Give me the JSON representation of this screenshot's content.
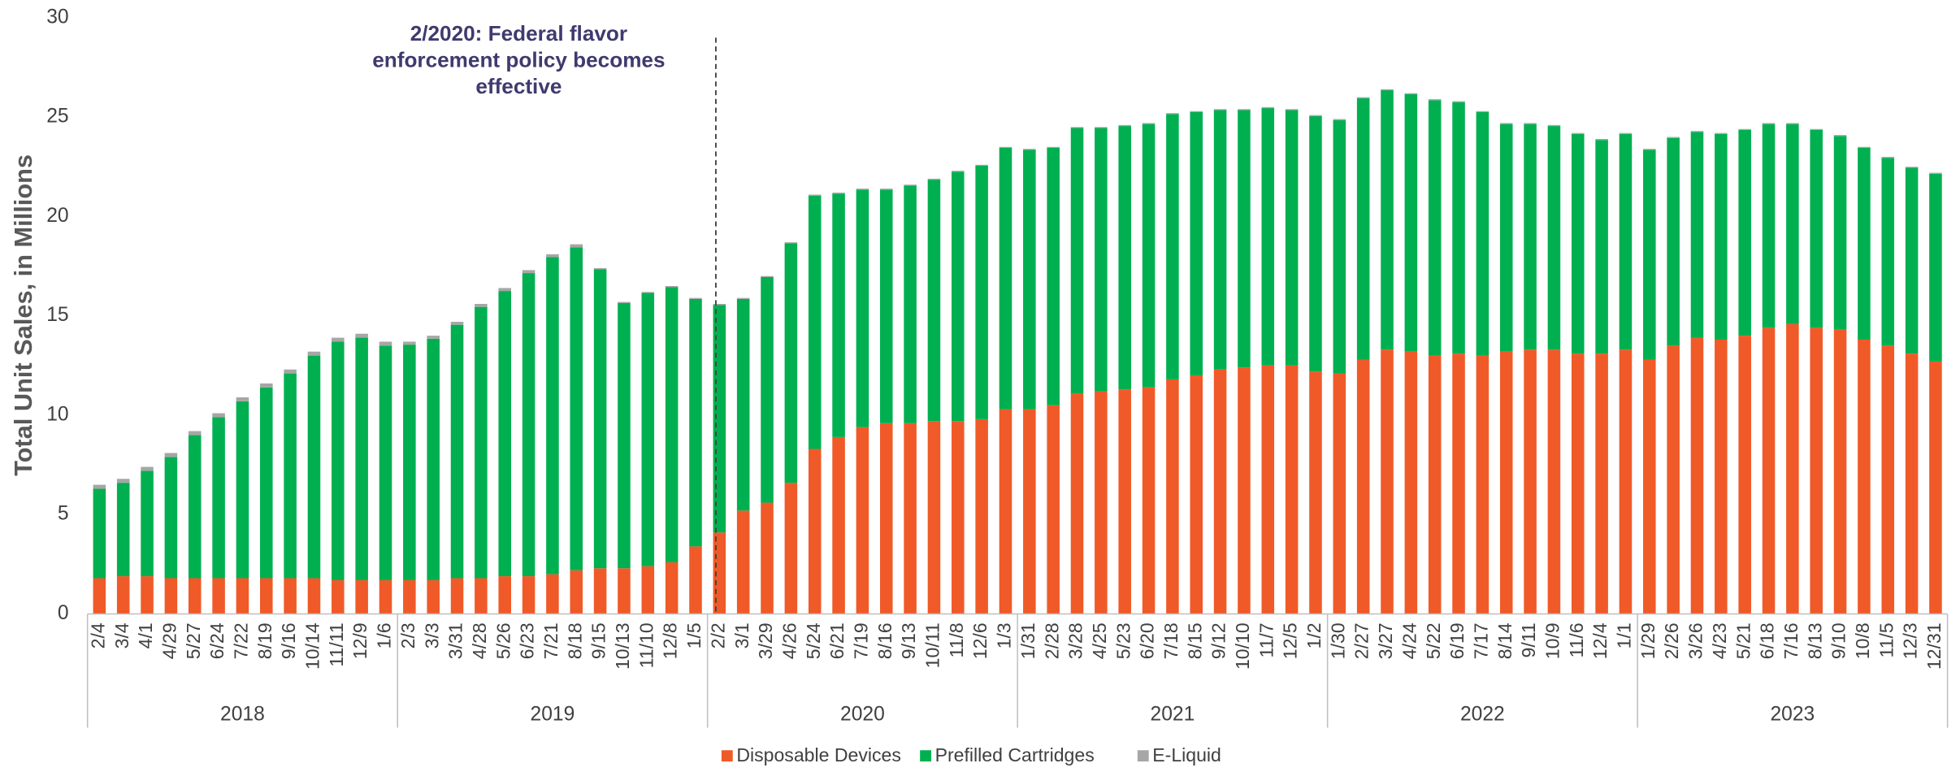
{
  "chart_data": {
    "type": "stacked_bar",
    "y_label": "Total Unit Sales, in Millions",
    "annotation": [
      "2/2020: Federal flavor",
      "enforcement policy becomes",
      "effective"
    ],
    "groups": [
      "2018",
      "2019",
      "2020",
      "2021",
      "2022",
      "2023"
    ],
    "categories": [
      "2/4",
      "3/4",
      "4/1",
      "4/29",
      "5/27",
      "6/24",
      "7/22",
      "8/19",
      "9/16",
      "10/14",
      "11/11",
      "12/9",
      "1/6",
      "2/3",
      "3/3",
      "3/31",
      "4/28",
      "5/26",
      "6/23",
      "7/21",
      "8/18",
      "9/15",
      "10/13",
      "11/10",
      "12/8",
      "1/5",
      "2/2",
      "3/1",
      "3/29",
      "4/26",
      "5/24",
      "6/21",
      "7/19",
      "8/16",
      "9/13",
      "10/11",
      "11/8",
      "12/6",
      "1/3",
      "1/31",
      "2/28",
      "3/28",
      "4/25",
      "5/23",
      "6/20",
      "7/18",
      "8/15",
      "9/12",
      "10/10",
      "11/7",
      "12/5",
      "1/2",
      "1/30",
      "2/27",
      "3/27",
      "4/24",
      "5/22",
      "6/19",
      "7/17",
      "8/14",
      "9/11",
      "10/9",
      "11/6",
      "12/4",
      "1/1",
      "1/29",
      "2/26",
      "3/26",
      "4/23",
      "5/21",
      "6/18",
      "7/16",
      "8/13",
      "9/10",
      "10/8",
      "11/5",
      "12/3",
      "12/31"
    ],
    "series": [
      {
        "name": "Disposable Devices",
        "color": "#f05a28",
        "values": [
          1.8,
          1.9,
          1.9,
          1.8,
          1.8,
          1.8,
          1.8,
          1.8,
          1.8,
          1.8,
          1.7,
          1.7,
          1.7,
          1.7,
          1.7,
          1.8,
          1.8,
          1.9,
          1.9,
          2.0,
          2.2,
          2.3,
          2.3,
          2.4,
          2.6,
          3.4,
          4.1,
          5.2,
          5.6,
          6.6,
          8.3,
          8.9,
          9.4,
          9.6,
          9.6,
          9.7,
          9.7,
          9.8,
          10.3,
          10.3,
          10.5,
          11.1,
          11.2,
          11.3,
          11.4,
          11.8,
          12.0,
          12.3,
          12.4,
          12.5,
          12.5,
          12.2,
          12.1,
          12.8,
          13.3,
          13.2,
          13.0,
          13.1,
          13.0,
          13.2,
          13.3,
          13.3,
          13.1,
          13.1,
          13.3,
          12.8,
          13.5,
          13.9,
          13.8,
          14.0,
          14.4,
          14.6,
          14.4,
          14.3,
          13.8,
          13.5,
          13.1,
          12.7
        ]
      },
      {
        "name": "Prefilled Cartridges",
        "color": "#00b050",
        "values": [
          4.5,
          4.7,
          5.3,
          6.1,
          7.2,
          8.1,
          8.9,
          9.6,
          10.3,
          11.2,
          12.0,
          12.2,
          11.8,
          11.85,
          12.15,
          12.75,
          13.65,
          14.35,
          15.25,
          15.95,
          16.25,
          15.05,
          13.35,
          13.75,
          13.85,
          12.45,
          11.45,
          10.65,
          11.35,
          12.05,
          12.75,
          12.25,
          11.95,
          11.75,
          11.95,
          12.15,
          12.55,
          12.75,
          13.15,
          13.05,
          12.95,
          13.35,
          13.25,
          13.25,
          13.25,
          13.35,
          13.25,
          13.05,
          12.95,
          12.95,
          12.85,
          12.85,
          12.75,
          13.15,
          13.05,
          12.95,
          12.85,
          12.65,
          12.25,
          11.45,
          11.35,
          11.25,
          11.05,
          10.75,
          10.85,
          10.55,
          10.45,
          10.35,
          10.35,
          10.35,
          10.25,
          10.05,
          9.95,
          9.75,
          9.65,
          9.45,
          9.35,
          9.45
        ]
      },
      {
        "name": "E-Liquid",
        "color": "#a6a6a6",
        "values": [
          0.2,
          0.2,
          0.2,
          0.2,
          0.2,
          0.2,
          0.2,
          0.2,
          0.2,
          0.2,
          0.2,
          0.2,
          0.2,
          0.15,
          0.15,
          0.15,
          0.15,
          0.15,
          0.15,
          0.15,
          0.15,
          0.05,
          0.05,
          0.05,
          0.05,
          0.05,
          0.05,
          0.05,
          0.05,
          0.05,
          0.05,
          0.05,
          0.05,
          0.05,
          0.05,
          0.05,
          0.05,
          0.05,
          0.05,
          0.05,
          0.05,
          0.05,
          0.05,
          0.05,
          0.05,
          0.05,
          0.05,
          0.05,
          0.05,
          0.05,
          0.05,
          0.05,
          0.05,
          0.05,
          0.05,
          0.05,
          0.05,
          0.05,
          0.05,
          0.05,
          0.05,
          0.05,
          0.05,
          0.05,
          0.05,
          0.05,
          0.05,
          0.05,
          0.05,
          0.05,
          0.05,
          0.05,
          0.05,
          0.05,
          0.05,
          0.05,
          0.05,
          0.05
        ]
      }
    ],
    "ylim": [
      0,
      30
    ],
    "yticks": [
      0,
      5,
      10,
      15,
      20,
      25,
      30
    ],
    "grid": false,
    "legend": "bottom"
  }
}
